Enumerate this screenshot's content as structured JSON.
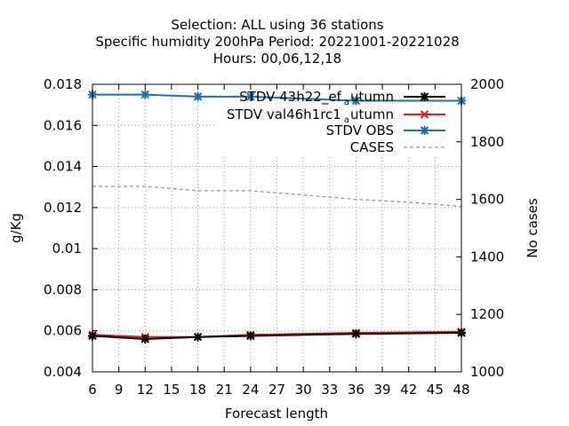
{
  "chart_data": {
    "type": "line",
    "title_lines": [
      "Selection: ALL using    36 stations",
      "Specific humidity 200hPa   Period: 20221001-20221028",
      "Hours:  00,06,12,18"
    ],
    "xlabel": "Forecast length",
    "ylabel": "g/Kg",
    "y2label": "No cases",
    "xlim": [
      6,
      48
    ],
    "ylim": [
      0.004,
      0.018
    ],
    "y2lim": [
      1000,
      2000
    ],
    "x_ticks": [
      6,
      9,
      12,
      15,
      18,
      21,
      24,
      27,
      30,
      33,
      36,
      39,
      42,
      45,
      48
    ],
    "y_ticks": [
      0.004,
      0.006,
      0.008,
      0.01,
      0.012,
      0.014,
      0.016,
      0.018
    ],
    "y_tick_labels": [
      "0.004",
      "0.006",
      "0.008",
      "0.01",
      "0.012",
      "0.014",
      "0.016",
      "0.018"
    ],
    "y2_ticks": [
      1000,
      1200,
      1400,
      1600,
      1800,
      2000
    ],
    "grid": true,
    "legend_position": "top-right",
    "x": [
      6,
      12,
      18,
      24,
      36,
      48
    ],
    "series": [
      {
        "legend_main": "STDV 43h22_ef",
        "legend_sub": "a",
        "legend_tail": "utumn",
        "color": "#000000",
        "marker": "asterisk",
        "axis": "y",
        "values": [
          0.00575,
          0.0056,
          0.0057,
          0.00575,
          0.00585,
          0.0059
        ]
      },
      {
        "legend_main": "STDV val46h1rc1",
        "legend_sub": "a",
        "legend_tail": "utumn",
        "color": "#e8160e",
        "marker": "x",
        "axis": "y",
        "values": [
          0.0058,
          0.0057,
          0.0057,
          0.0058,
          0.0059,
          0.00595
        ]
      },
      {
        "legend_main": "STDV OBS",
        "legend_sub": "",
        "legend_tail": "",
        "color": "#1a6eaa",
        "marker": "asterisk",
        "axis": "y",
        "values": [
          0.0175,
          0.0175,
          0.0174,
          0.0174,
          0.0172,
          0.0172
        ]
      },
      {
        "legend_main": "CASES",
        "legend_sub": "",
        "legend_tail": "",
        "color": "#9a9a9a",
        "marker": "none",
        "dashed": true,
        "axis": "y2",
        "x": [
          6,
          12,
          18,
          24,
          30,
          36,
          42,
          48
        ],
        "values": [
          1645,
          1645,
          1630,
          1630,
          1615,
          1600,
          1590,
          1575
        ]
      }
    ]
  }
}
